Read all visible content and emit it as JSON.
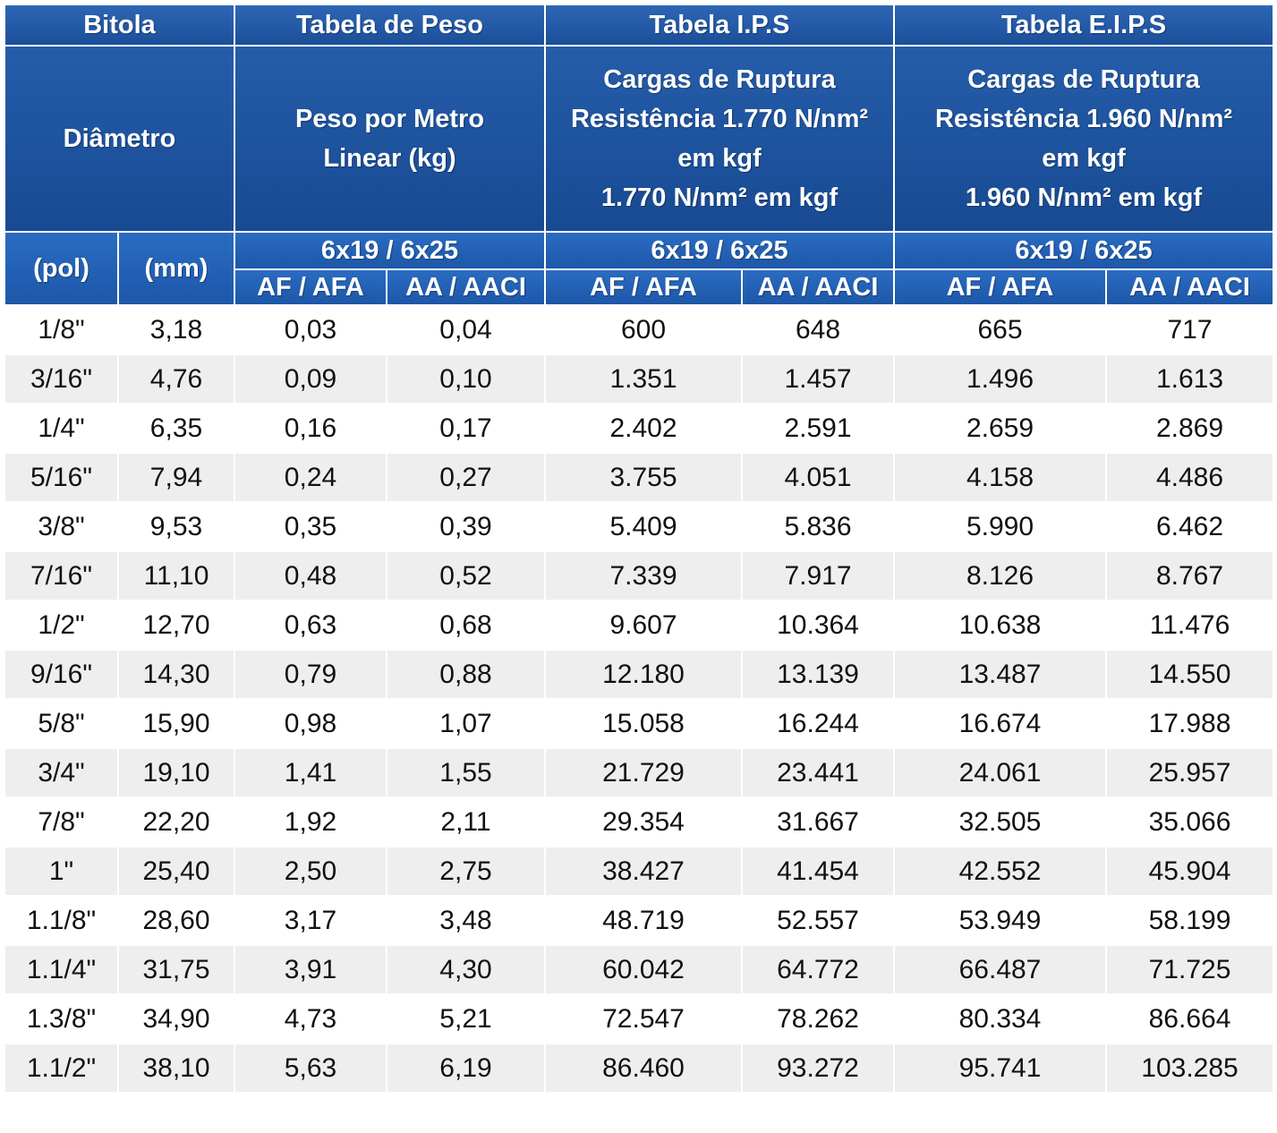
{
  "header": {
    "bitola": "Bitola",
    "tabela_peso": "Tabela de Peso",
    "tabela_ips": "Tabela I.P.S",
    "tabela_eips": "Tabela E.I.P.S",
    "diametro": "Diâmetro",
    "peso_line1": "Peso por Metro",
    "peso_line2": "Linear (kg)",
    "ips_line1": "Cargas de Ruptura",
    "ips_line2": "Resistência 1.770 N/nm²",
    "ips_line3": "em kgf",
    "ips_line4": "1.770 N/nm² em kgf",
    "eips_line1": "Cargas de Ruptura",
    "eips_line2": "Resistência 1.960 N/nm²",
    "eips_line3": "em kgf",
    "eips_line4": "1.960 N/nm² em kgf",
    "construction": "6x19 / 6x25",
    "unit_pol": "(pol)",
    "unit_mm": "(mm)",
    "af_afa": "AF / AFA",
    "aa_aaci": "AA / AACI"
  },
  "rows": [
    [
      "1/8\"",
      "3,18",
      "0,03",
      "0,04",
      "600",
      "648",
      "665",
      "717"
    ],
    [
      "3/16\"",
      "4,76",
      "0,09",
      "0,10",
      "1.351",
      "1.457",
      "1.496",
      "1.613"
    ],
    [
      "1/4\"",
      "6,35",
      "0,16",
      "0,17",
      "2.402",
      "2.591",
      "2.659",
      "2.869"
    ],
    [
      "5/16\"",
      "7,94",
      "0,24",
      "0,27",
      "3.755",
      "4.051",
      "4.158",
      "4.486"
    ],
    [
      "3/8\"",
      "9,53",
      "0,35",
      "0,39",
      "5.409",
      "5.836",
      "5.990",
      "6.462"
    ],
    [
      "7/16\"",
      "11,10",
      "0,48",
      "0,52",
      "7.339",
      "7.917",
      "8.126",
      "8.767"
    ],
    [
      "1/2\"",
      "12,70",
      "0,63",
      "0,68",
      "9.607",
      "10.364",
      "10.638",
      "11.476"
    ],
    [
      "9/16\"",
      "14,30",
      "0,79",
      "0,88",
      "12.180",
      "13.139",
      "13.487",
      "14.550"
    ],
    [
      "5/8\"",
      "15,90",
      "0,98",
      "1,07",
      "15.058",
      "16.244",
      "16.674",
      "17.988"
    ],
    [
      "3/4\"",
      "19,10",
      "1,41",
      "1,55",
      "21.729",
      "23.441",
      "24.061",
      "25.957"
    ],
    [
      "7/8\"",
      "22,20",
      "1,92",
      "2,11",
      "29.354",
      "31.667",
      "32.505",
      "35.066"
    ],
    [
      "1\"",
      "25,40",
      "2,50",
      "2,75",
      "38.427",
      "41.454",
      "42.552",
      "45.904"
    ],
    [
      "1.1/8\"",
      "28,60",
      "3,17",
      "3,48",
      "48.719",
      "52.557",
      "53.949",
      "58.199"
    ],
    [
      "1.1/4\"",
      "31,75",
      "3,91",
      "4,30",
      "60.042",
      "64.772",
      "66.487",
      "71.725"
    ],
    [
      "1.3/8\"",
      "34,90",
      "4,73",
      "5,21",
      "72.547",
      "78.262",
      "80.334",
      "86.664"
    ],
    [
      "1.1/2\"",
      "38,10",
      "5,63",
      "6,19",
      "86.460",
      "93.272",
      "95.741",
      "103.285"
    ]
  ],
  "colors": {
    "header_blue": "#1c4f9a",
    "sub_header_blue": "#2a6cc2",
    "row_alt": "#eeeeee",
    "row_base": "#ffffff"
  }
}
